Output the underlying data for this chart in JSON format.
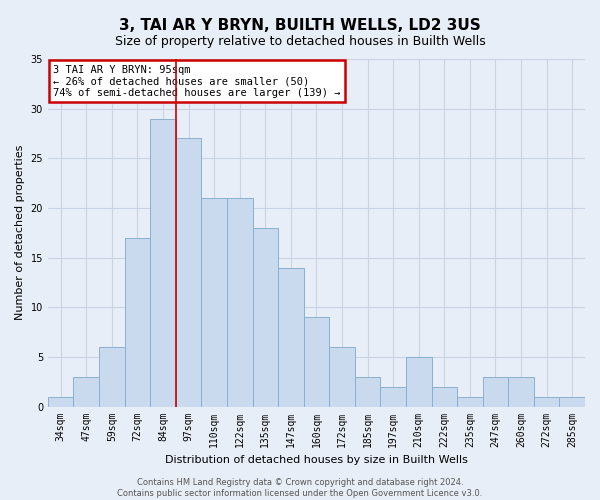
{
  "title": "3, TAI AR Y BRYN, BUILTH WELLS, LD2 3US",
  "subtitle": "Size of property relative to detached houses in Builth Wells",
  "xlabel": "Distribution of detached houses by size in Builth Wells",
  "ylabel": "Number of detached properties",
  "bar_labels": [
    "34sqm",
    "47sqm",
    "59sqm",
    "72sqm",
    "84sqm",
    "97sqm",
    "110sqm",
    "122sqm",
    "135sqm",
    "147sqm",
    "160sqm",
    "172sqm",
    "185sqm",
    "197sqm",
    "210sqm",
    "222sqm",
    "235sqm",
    "247sqm",
    "260sqm",
    "272sqm",
    "285sqm"
  ],
  "bar_values": [
    1,
    3,
    6,
    17,
    29,
    27,
    21,
    21,
    18,
    14,
    9,
    6,
    3,
    2,
    5,
    2,
    1,
    3,
    3,
    1,
    1
  ],
  "bar_color": "#c9d9ee",
  "bar_edgecolor": "#8ab0d0",
  "ylim": [
    0,
    35
  ],
  "yticks": [
    0,
    5,
    10,
    15,
    20,
    25,
    30,
    35
  ],
  "annotation_lines": [
    "3 TAI AR Y BRYN: 95sqm",
    "← 26% of detached houses are smaller (50)",
    "74% of semi-detached houses are larger (139) →"
  ],
  "footer_lines": [
    "Contains HM Land Registry data © Crown copyright and database right 2024.",
    "Contains public sector information licensed under the Open Government Licence v3.0."
  ],
  "red_line_color": "#cc0000",
  "annotation_box_edgecolor": "#cc0000",
  "background_color": "#e8eef7",
  "grid_color": "#c8d4e4",
  "title_fontsize": 11,
  "subtitle_fontsize": 9,
  "axis_label_fontsize": 8,
  "tick_fontsize": 7,
  "footer_fontsize": 6
}
